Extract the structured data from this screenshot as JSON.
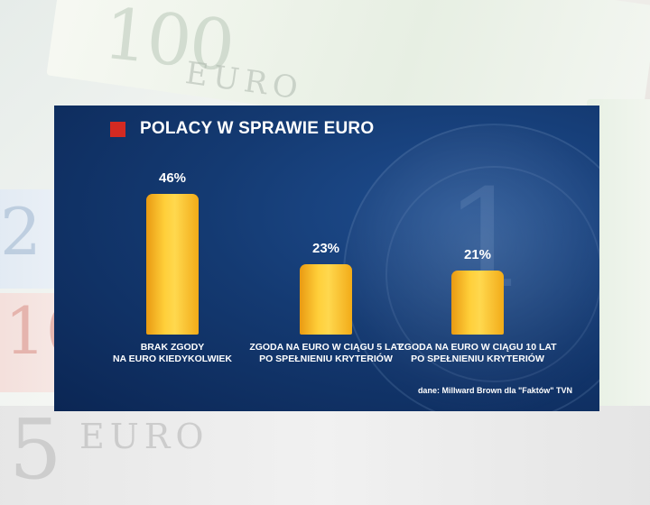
{
  "chart_data": {
    "type": "bar",
    "title": "POLACY W SPRAWIE EURO",
    "categories": [
      "BRAK ZGODY\nNA EURO KIEDYKOLWIEK",
      "ZGODA NA EURO W CIĄGU 5 LAT\nPO SPEŁNIENIU KRYTERIÓW",
      "ZGODA NA EURO W CIĄGU 10 LAT\nPO SPEŁNIENIU KRYTERIÓW"
    ],
    "values": [
      46,
      23,
      21
    ],
    "value_labels": [
      "46%",
      "23%",
      "21%"
    ],
    "ylim": [
      0,
      50
    ],
    "grid": false,
    "source": "dane: Millward Brown dla \"Faktów\" TVN",
    "colors": {
      "bar": "#FFC72C",
      "background": "#143A72",
      "title_marker": "#D32A22"
    }
  }
}
